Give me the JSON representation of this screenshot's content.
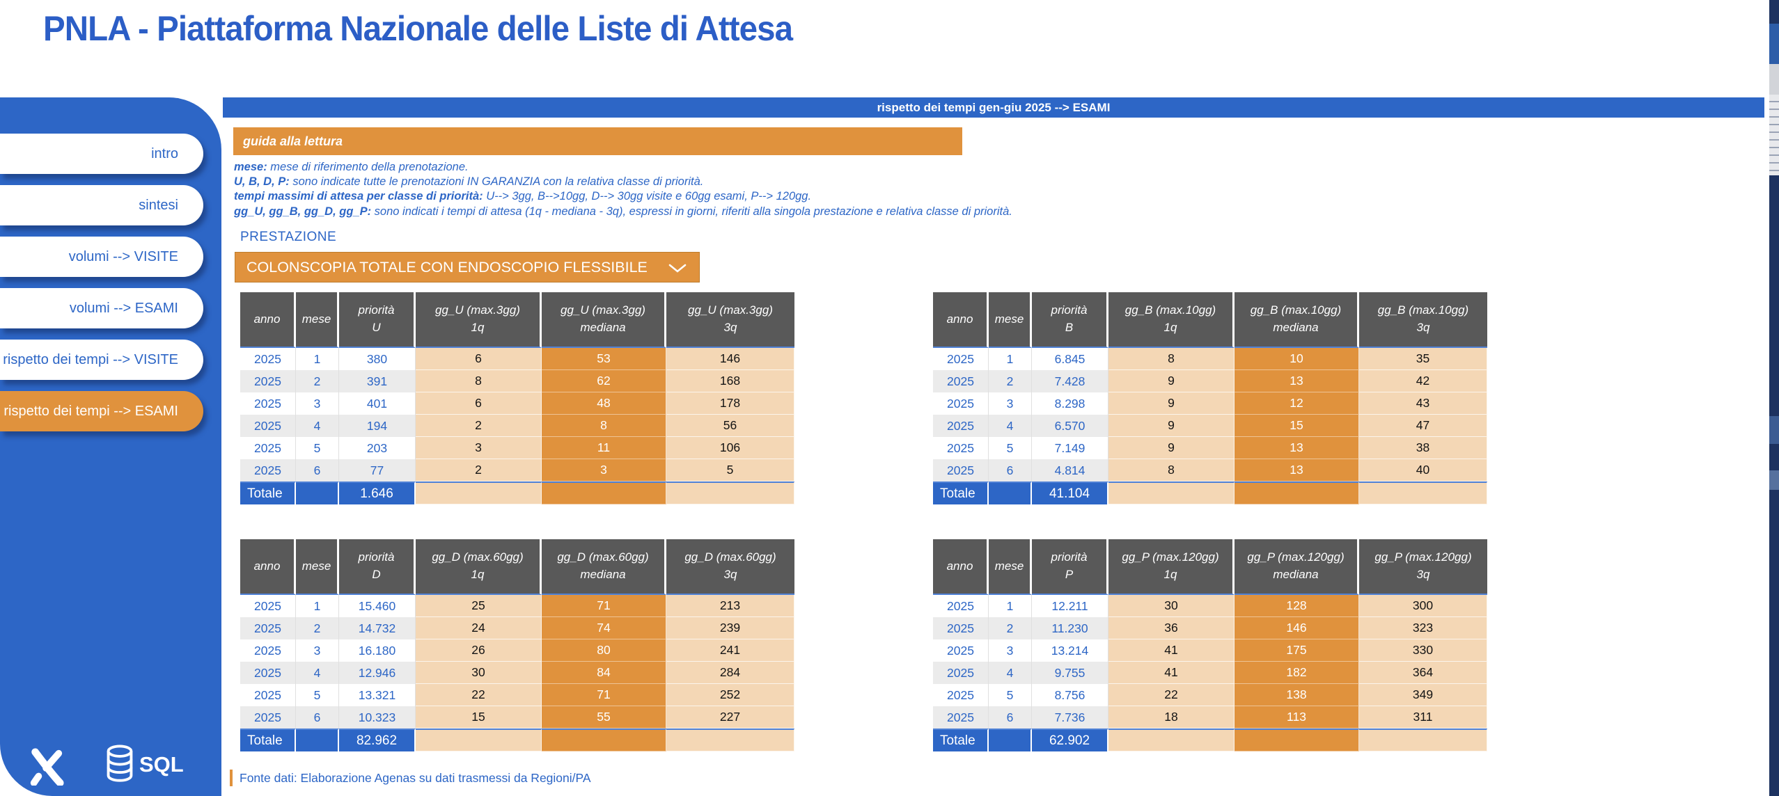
{
  "title": "PNLA - Piattaforma Nazionale delle Liste di Attesa",
  "header_bar": {
    "label": "rispetto dei tempi gen-giu 2025 --> ESAMI"
  },
  "sidebar": {
    "items": [
      {
        "label": "intro",
        "active": false
      },
      {
        "label": "sintesi",
        "active": false
      },
      {
        "label": "volumi --> VISITE",
        "active": false
      },
      {
        "label": "volumi --> ESAMI",
        "active": false
      },
      {
        "label": "rispetto dei tempi --> VISITE",
        "active": false
      },
      {
        "label": "rispetto dei tempi --> ESAMI",
        "active": true
      }
    ],
    "sql_label": "SQL",
    "icons": [
      "brand-x-logo",
      "sql-database-icon"
    ]
  },
  "guide": {
    "banner": "guida alla lettura",
    "lines": [
      {
        "label": "mese:",
        "text": "mese di riferimento della prenotazione."
      },
      {
        "label": "U, B, D, P:",
        "text": "sono indicate tutte le prenotazioni IN GARANZIA con la relativa classe di priorità."
      },
      {
        "label": "tempi massimi di attesa per classe di priorità:",
        "text": "U--> 3gg, B-->10gg, D--> 30gg visite e 60gg esami, P--> 120gg."
      },
      {
        "label": "gg_U, gg_B, gg_D, gg_P:",
        "text": "sono indicati i tempi di attesa (1q - mediana - 3q), espressi in giorni, riferiti alla singola prestazione e relativa classe di priorità."
      }
    ]
  },
  "prestazione": {
    "label": "PRESTAZIONE",
    "selected": "COLONSCOPIA TOTALE CON ENDOSCOPIO FLESSIBILE"
  },
  "totale_label": "Totale",
  "tables": [
    {
      "name": "priorita-U",
      "headers": [
        "anno",
        "mese",
        "priorità\nU",
        "gg_U (max.3gg)\n1q",
        "gg_U (max.3gg)\nmediana",
        "gg_U (max.3gg)\n3q"
      ],
      "rows": [
        [
          "2025",
          "1",
          "380",
          "6",
          "53",
          "146"
        ],
        [
          "2025",
          "2",
          "391",
          "8",
          "62",
          "168"
        ],
        [
          "2025",
          "3",
          "401",
          "6",
          "48",
          "178"
        ],
        [
          "2025",
          "4",
          "194",
          "2",
          "8",
          "56"
        ],
        [
          "2025",
          "5",
          "203",
          "3",
          "11",
          "106"
        ],
        [
          "2025",
          "6",
          "77",
          "2",
          "3",
          "5"
        ]
      ],
      "totale_value": "1.646"
    },
    {
      "name": "priorita-B",
      "headers": [
        "anno",
        "mese",
        "priorità\nB",
        "gg_B (max.10gg)\n1q",
        "gg_B (max.10gg)\nmediana",
        "gg_B (max.10gg)\n3q"
      ],
      "rows": [
        [
          "2025",
          "1",
          "6.845",
          "8",
          "10",
          "35"
        ],
        [
          "2025",
          "2",
          "7.428",
          "9",
          "13",
          "42"
        ],
        [
          "2025",
          "3",
          "8.298",
          "9",
          "12",
          "43"
        ],
        [
          "2025",
          "4",
          "6.570",
          "9",
          "15",
          "47"
        ],
        [
          "2025",
          "5",
          "7.149",
          "9",
          "13",
          "38"
        ],
        [
          "2025",
          "6",
          "4.814",
          "8",
          "13",
          "40"
        ]
      ],
      "totale_value": "41.104"
    },
    {
      "name": "priorita-D",
      "headers": [
        "anno",
        "mese",
        "priorità\nD",
        "gg_D (max.60gg)\n1q",
        "gg_D (max.60gg)\nmediana",
        "gg_D (max.60gg)\n3q"
      ],
      "rows": [
        [
          "2025",
          "1",
          "15.460",
          "25",
          "71",
          "213"
        ],
        [
          "2025",
          "2",
          "14.732",
          "24",
          "74",
          "239"
        ],
        [
          "2025",
          "3",
          "16.180",
          "26",
          "80",
          "241"
        ],
        [
          "2025",
          "4",
          "12.946",
          "30",
          "84",
          "284"
        ],
        [
          "2025",
          "5",
          "13.321",
          "22",
          "71",
          "252"
        ],
        [
          "2025",
          "6",
          "10.323",
          "15",
          "55",
          "227"
        ]
      ],
      "totale_value": "82.962"
    },
    {
      "name": "priorita-P",
      "headers": [
        "anno",
        "mese",
        "priorità\nP",
        "gg_P (max.120gg)\n1q",
        "gg_P (max.120gg)\nmediana",
        "gg_P (max.120gg)\n3q"
      ],
      "rows": [
        [
          "2025",
          "1",
          "12.211",
          "30",
          "128",
          "300"
        ],
        [
          "2025",
          "2",
          "11.230",
          "36",
          "146",
          "323"
        ],
        [
          "2025",
          "3",
          "13.214",
          "41",
          "175",
          "330"
        ],
        [
          "2025",
          "4",
          "9.755",
          "41",
          "182",
          "364"
        ],
        [
          "2025",
          "5",
          "8.756",
          "22",
          "138",
          "349"
        ],
        [
          "2025",
          "6",
          "7.736",
          "18",
          "113",
          "311"
        ]
      ],
      "totale_value": "62.902"
    }
  ],
  "footer": {
    "source": "Fonte dati: Elaborazione Agenas su dati trasmessi da Regioni/PA"
  },
  "colors": {
    "primary_blue": "#2d66c6",
    "title_blue": "#2c5ec6",
    "accent_orange": "#e0923d",
    "peach": "#f4d7b5",
    "header_gray": "#595959",
    "stripe_gray": "#ebebeb",
    "divider_blue": "#4f81d6",
    "edge_navy": "#1d3260"
  }
}
